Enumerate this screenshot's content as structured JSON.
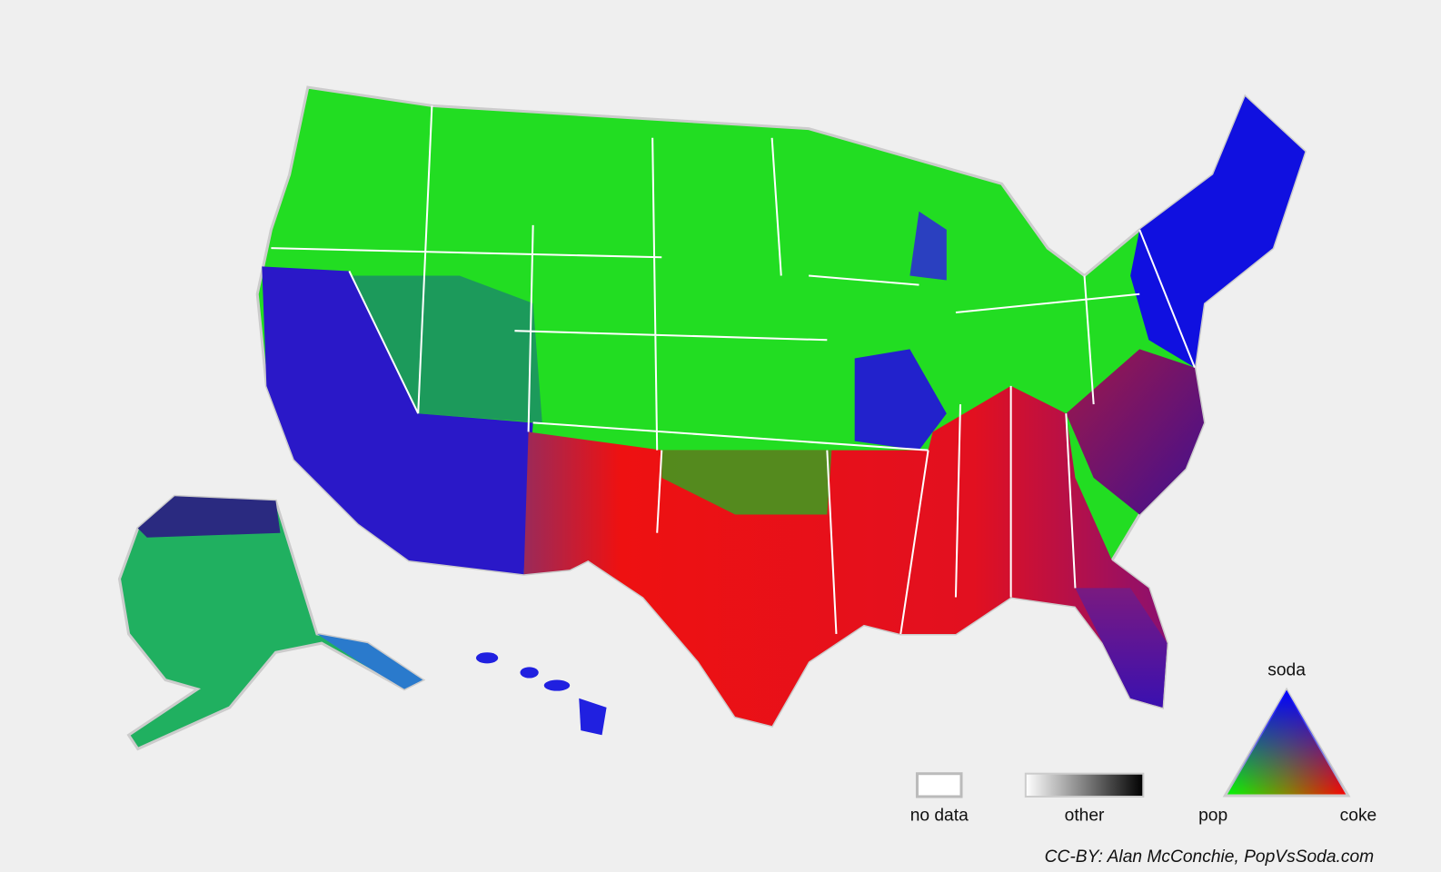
{
  "legend": {
    "no_data": "no data",
    "other": "other",
    "soda": "soda",
    "pop": "pop",
    "coke": "coke"
  },
  "credit": "CC-BY: Alan McConchie, PopVsSoda.com"
}
